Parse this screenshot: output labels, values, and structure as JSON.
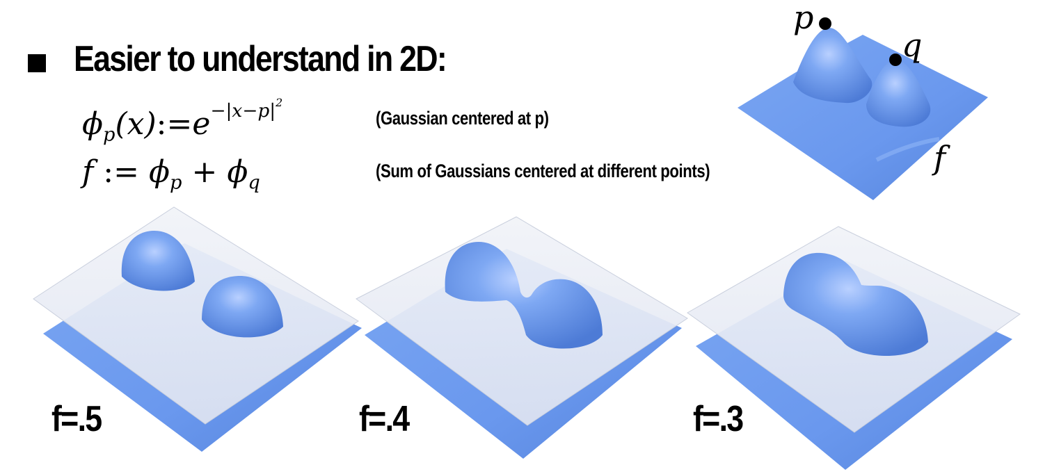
{
  "heading": "Easier to understand in 2D:",
  "equations": {
    "phi": "ϕ",
    "sub_p": "p",
    "x_arg": "(x)",
    "assign": ":=",
    "base_e": "e",
    "exponent": "−|x−p|",
    "exp_power": "2",
    "f": "f",
    "assign2": ":=",
    "sub_q": "q",
    "plus": "+"
  },
  "notes": {
    "gaussian": "(Gaussian centered at p)",
    "sum": "(Sum of Gaussians centered at different points)"
  },
  "point_labels": {
    "p": "p",
    "q": "q",
    "f": "f"
  },
  "level_labels": [
    "f=.5",
    "f=.4",
    "f=.3"
  ],
  "colors": {
    "surface": "#6f9ef0",
    "surface_dark": "#4f7fd8",
    "plane": "#e4e8f3",
    "point": "#000000"
  }
}
